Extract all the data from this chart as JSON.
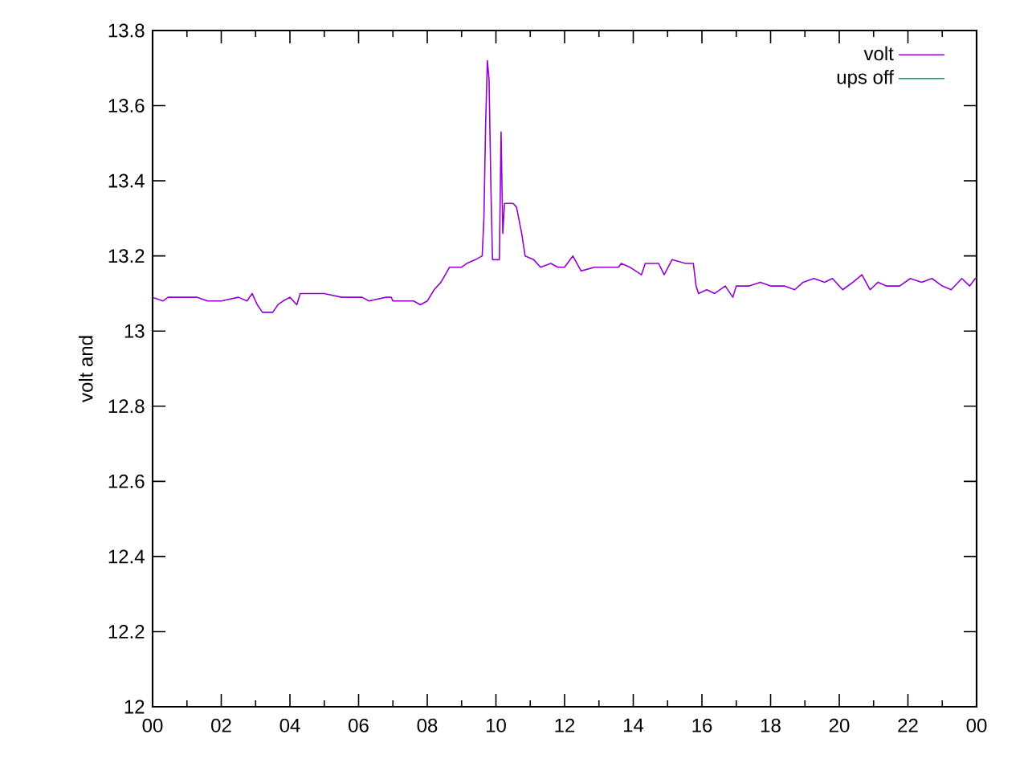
{
  "chart_data": {
    "type": "line",
    "ylabel": "volt and",
    "x": [
      0,
      0.3,
      0.45,
      1.3,
      1.6,
      2.0,
      2.5,
      2.75,
      2.9,
      3.05,
      3.2,
      3.5,
      3.65,
      3.8,
      4.0,
      4.2,
      4.3,
      5.0,
      5.5,
      6.1,
      6.3,
      6.8,
      6.95,
      7.0,
      7.6,
      7.8,
      8.0,
      8.2,
      8.4,
      8.65,
      9.0,
      9.15,
      9.4,
      9.6,
      9.65,
      9.7,
      9.75,
      9.8,
      9.85,
      9.9,
      10.1,
      10.15,
      10.2,
      10.25,
      10.5,
      10.6,
      10.75,
      10.85,
      11.1,
      11.3,
      11.6,
      11.8,
      12.0,
      12.24,
      12.48,
      12.87,
      13.57,
      13.65,
      13.9,
      14.24,
      14.35,
      14.74,
      14.9,
      15.13,
      15.52,
      15.75,
      15.83,
      15.9,
      16.14,
      16.37,
      16.68,
      16.9,
      17.0,
      17.38,
      17.7,
      18.0,
      18.4,
      18.7,
      18.95,
      19.26,
      19.57,
      19.8,
      20.1,
      20.4,
      20.66,
      20.9,
      21.13,
      21.37,
      21.76,
      22.07,
      22.4,
      22.7,
      23.0,
      23.26,
      23.57,
      23.8,
      23.96,
      24
    ],
    "series": [
      {
        "name": "volt",
        "color": "#9400d3",
        "values": [
          13.09,
          13.08,
          13.09,
          13.09,
          13.08,
          13.08,
          13.09,
          13.08,
          13.1,
          13.07,
          13.05,
          13.05,
          13.07,
          13.08,
          13.09,
          13.07,
          13.1,
          13.1,
          13.09,
          13.09,
          13.08,
          13.09,
          13.09,
          13.08,
          13.08,
          13.07,
          13.08,
          13.11,
          13.13,
          13.17,
          13.17,
          13.18,
          13.19,
          13.2,
          13.3,
          13.55,
          13.72,
          13.67,
          13.4,
          13.19,
          13.19,
          13.53,
          13.26,
          13.34,
          13.34,
          13.33,
          13.26,
          13.2,
          13.19,
          13.17,
          13.18,
          13.17,
          13.17,
          13.2,
          13.16,
          13.17,
          13.17,
          13.18,
          13.17,
          13.15,
          13.18,
          13.18,
          13.15,
          13.19,
          13.18,
          13.18,
          13.12,
          13.1,
          13.11,
          13.1,
          13.12,
          13.09,
          13.12,
          13.12,
          13.13,
          13.12,
          13.12,
          13.11,
          13.13,
          13.14,
          13.13,
          13.14,
          13.11,
          13.13,
          13.15,
          13.11,
          13.13,
          13.12,
          13.12,
          13.14,
          13.13,
          13.14,
          13.12,
          13.11,
          13.14,
          13.12,
          13.14,
          13.14
        ]
      },
      {
        "name": "ups off",
        "color": "#009e73",
        "values": [
          null,
          null,
          null,
          null,
          null,
          null,
          null,
          null,
          null,
          null,
          null,
          null,
          null,
          null,
          null,
          null,
          null,
          null,
          null,
          null,
          null,
          null,
          null,
          null,
          null,
          null,
          null,
          null,
          null,
          null,
          null,
          null,
          null,
          null,
          null,
          null,
          null,
          null,
          null,
          null,
          null,
          null,
          null,
          null,
          null,
          null,
          null,
          null,
          null,
          null,
          null,
          null,
          null,
          null,
          null,
          null,
          null,
          null,
          null,
          null,
          null,
          null,
          null,
          null,
          null,
          null,
          null,
          null,
          null,
          null,
          null,
          null,
          null,
          null,
          null,
          null,
          null,
          null,
          null,
          null,
          null,
          null,
          null,
          null,
          null,
          null,
          null,
          null,
          null,
          null,
          null,
          null,
          null,
          null,
          null,
          null,
          null,
          null
        ]
      }
    ],
    "xlim": [
      0,
      24
    ],
    "xticks": [
      {
        "value": 0,
        "label": "00"
      },
      {
        "value": 2,
        "label": "02"
      },
      {
        "value": 4,
        "label": "04"
      },
      {
        "value": 6,
        "label": "06"
      },
      {
        "value": 8,
        "label": "08"
      },
      {
        "value": 10,
        "label": "10"
      },
      {
        "value": 12,
        "label": "12"
      },
      {
        "value": 14,
        "label": "14"
      },
      {
        "value": 16,
        "label": "16"
      },
      {
        "value": 18,
        "label": "18"
      },
      {
        "value": 20,
        "label": "20"
      },
      {
        "value": 22,
        "label": "22"
      },
      {
        "value": 24,
        "label": "00"
      }
    ],
    "ylim": [
      12,
      13.8
    ],
    "yticks": [
      12,
      12.2,
      12.4,
      12.6,
      12.8,
      13,
      13.2,
      13.4,
      13.6,
      13.8
    ],
    "legend": "top right",
    "grid": false,
    "marker": "none",
    "line_style": "solid"
  }
}
